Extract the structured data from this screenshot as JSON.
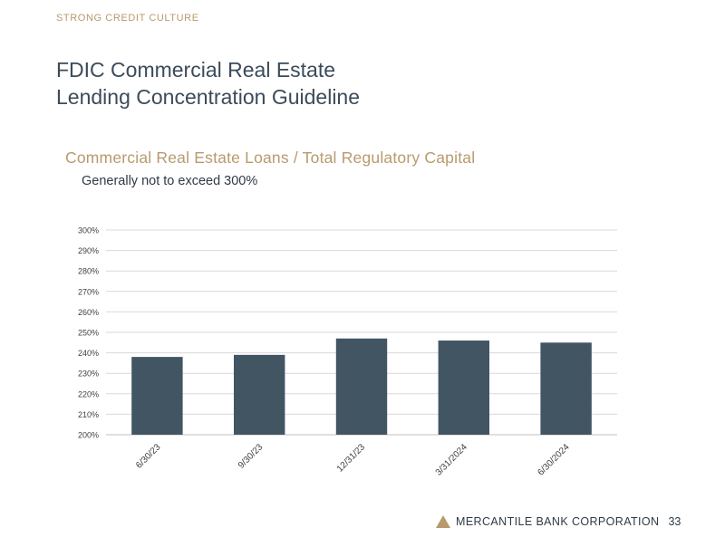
{
  "header": {
    "section_label": "STRONG CREDIT CULTURE",
    "title_line1": "FDIC Commercial Real Estate",
    "title_line2": "Lending Concentration Guideline"
  },
  "chart_heading": "Commercial Real Estate Loans / Total Regulatory Capital",
  "chart_subheading": "Generally not to exceed 300%",
  "chart_data": {
    "type": "bar",
    "title": "Commercial Real Estate Loans / Total Regulatory Capital",
    "subtitle": "Generally not to exceed 300%",
    "categories": [
      "6/30/23",
      "9/30/23",
      "12/31/23",
      "3/31/2024",
      "6/30/2024"
    ],
    "values": [
      238,
      239,
      247,
      246,
      245
    ],
    "unit": "%",
    "ylim": [
      200,
      300
    ],
    "yticks": [
      "200%",
      "210%",
      "220%",
      "230%",
      "240%",
      "250%",
      "260%",
      "270%",
      "280%",
      "290%",
      "300%"
    ],
    "xlabel": "",
    "ylabel": "",
    "grid": true,
    "bar_color": "#425563",
    "grid_color": "#d9d9d9"
  },
  "footer": {
    "company": "MERCANTILE BANK CORPORATION",
    "page_number": "33",
    "logo_icon": "triangle-logo-icon",
    "logo_color": "#b89a6e"
  }
}
